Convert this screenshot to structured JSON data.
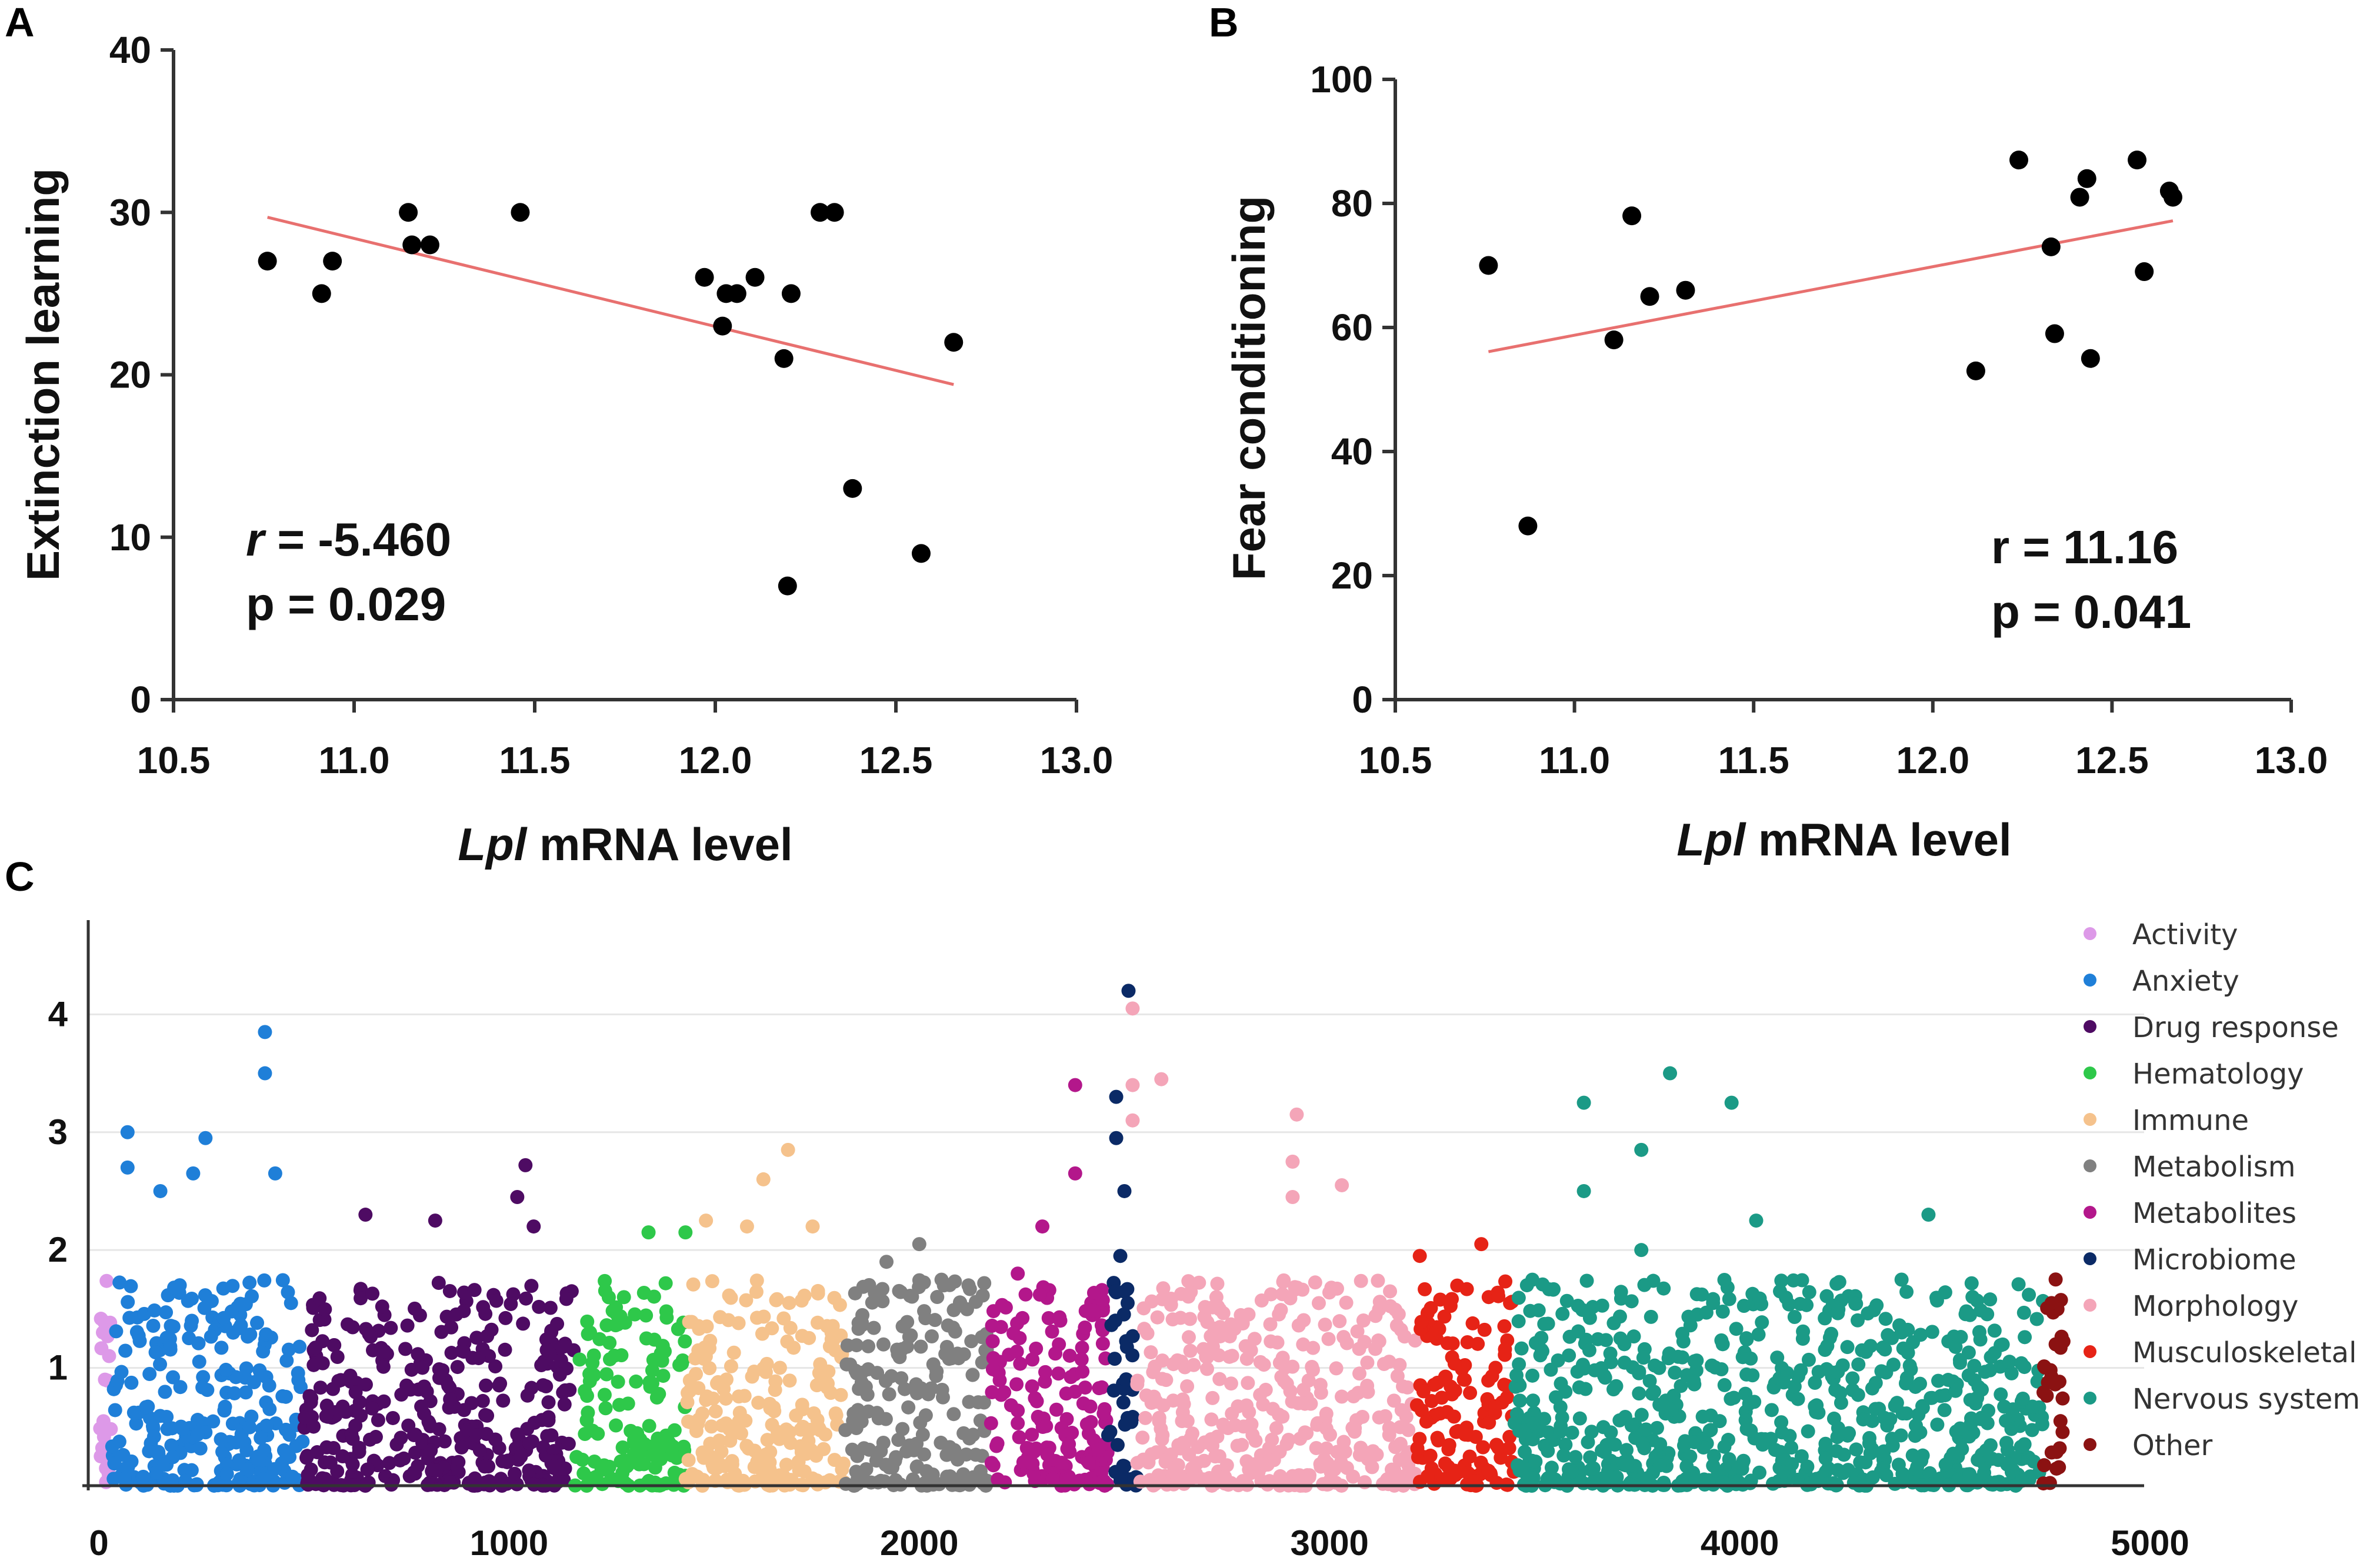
{
  "panels": {
    "a": "A",
    "b": "B",
    "c": "C"
  },
  "chart_data": [
    {
      "id": "A",
      "type": "scatter",
      "title": "",
      "xlabel_italic": "Lpl",
      "xlabel_rest": " mRNA level",
      "ylabel": "Extinction learning",
      "xlim": [
        10.5,
        13.0
      ],
      "ylim": [
        0,
        40
      ],
      "xticks": [
        "10.5",
        "11.0",
        "11.5",
        "12.0",
        "12.5",
        "13.0"
      ],
      "yticks": [
        "0",
        "10",
        "20",
        "30",
        "40"
      ],
      "points": [
        [
          10.76,
          27
        ],
        [
          10.91,
          25
        ],
        [
          10.94,
          27
        ],
        [
          11.15,
          30
        ],
        [
          11.16,
          28
        ],
        [
          11.21,
          28
        ],
        [
          11.46,
          30
        ],
        [
          11.97,
          26
        ],
        [
          12.02,
          23
        ],
        [
          12.03,
          25
        ],
        [
          12.06,
          25
        ],
        [
          12.11,
          26
        ],
        [
          12.19,
          21
        ],
        [
          12.21,
          25
        ],
        [
          12.2,
          7
        ],
        [
          12.29,
          30
        ],
        [
          12.33,
          30
        ],
        [
          12.38,
          13
        ],
        [
          12.57,
          9
        ],
        [
          12.66,
          22
        ]
      ],
      "fit": {
        "x": [
          10.76,
          12.66
        ],
        "y": [
          29.7,
          19.4
        ],
        "color": "#e8706f"
      },
      "stat_r_label": "r",
      "stat_r_value": " = -5.460",
      "stat_p": "p = 0.029"
    },
    {
      "id": "B",
      "type": "scatter",
      "title": "",
      "xlabel_italic": "Lpl",
      "xlabel_rest": " mRNA level",
      "ylabel": "Fear conditioning",
      "xlim": [
        10.5,
        13.0
      ],
      "ylim": [
        0,
        100
      ],
      "xticks": [
        "10.5",
        "11.0",
        "11.5",
        "12.0",
        "12.5",
        "13.0"
      ],
      "yticks": [
        "0",
        "20",
        "40",
        "60",
        "80",
        "100"
      ],
      "points": [
        [
          10.76,
          70
        ],
        [
          10.87,
          28
        ],
        [
          11.11,
          58
        ],
        [
          11.16,
          78
        ],
        [
          11.21,
          65
        ],
        [
          11.31,
          66
        ],
        [
          12.12,
          53
        ],
        [
          12.24,
          87
        ],
        [
          12.33,
          73
        ],
        [
          12.34,
          59
        ],
        [
          12.41,
          81
        ],
        [
          12.43,
          84
        ],
        [
          12.44,
          55
        ],
        [
          12.57,
          87
        ],
        [
          12.59,
          69
        ],
        [
          12.66,
          82
        ],
        [
          12.67,
          81
        ]
      ],
      "fit": {
        "x": [
          10.76,
          12.67
        ],
        "y": [
          56.1,
          77.2
        ],
        "color": "#e8706f"
      },
      "stat_r": "r = 11.16",
      "stat_p": "p = 0.041"
    },
    {
      "id": "C",
      "type": "scatter",
      "title": "",
      "xlabel": "",
      "ylabel": "",
      "xlim": [
        0,
        5000
      ],
      "ylim": [
        0,
        4.8
      ],
      "xticks": [
        "0",
        "1000",
        "2000",
        "3000",
        "4000",
        "5000"
      ],
      "yticks": [
        "1",
        "2",
        "3",
        "4"
      ],
      "grid": true,
      "legend_position": "right",
      "categories": [
        {
          "name": "Activity",
          "color": "#dd99e8",
          "range": [
            0,
            30
          ],
          "peaks": [
            [
              10,
              1.3
            ],
            [
              25,
              1.1
            ],
            [
              15,
              0.9
            ]
          ]
        },
        {
          "name": "Anxiety",
          "color": "#1f7fd8",
          "range": [
            30,
            500
          ],
          "peaks": [
            [
              405,
              3.85
            ],
            [
              405,
              3.5
            ],
            [
              70,
              3.0
            ],
            [
              260,
              2.95
            ],
            [
              70,
              2.7
            ],
            [
              230,
              2.65
            ],
            [
              430,
              2.65
            ],
            [
              150,
              2.5
            ]
          ]
        },
        {
          "name": "Drug response",
          "color": "#4e0b63",
          "range": [
            500,
            1160
          ],
          "peaks": [
            [
              1040,
              2.72
            ],
            [
              1020,
              2.45
            ],
            [
              650,
              2.3
            ],
            [
              820,
              2.25
            ],
            [
              1060,
              2.2
            ]
          ]
        },
        {
          "name": "Hematology",
          "color": "#2ec84a",
          "range": [
            1160,
            1430
          ],
          "peaks": [
            [
              1340,
              2.15
            ],
            [
              1430,
              2.15
            ],
            [
              1280,
              1.6
            ]
          ]
        },
        {
          "name": "Immune",
          "color": "#f5c28c",
          "range": [
            1430,
            1820
          ],
          "peaks": [
            [
              1680,
              2.85
            ],
            [
              1620,
              2.6
            ],
            [
              1480,
              2.25
            ],
            [
              1580,
              2.2
            ],
            [
              1740,
              2.2
            ]
          ]
        },
        {
          "name": "Metabolism",
          "color": "#808080",
          "range": [
            1820,
            2170
          ],
          "peaks": [
            [
              2000,
              2.05
            ],
            [
              1920,
              1.9
            ],
            [
              2060,
              1.7
            ],
            [
              2120,
              1.7
            ]
          ]
        },
        {
          "name": "Metabolites",
          "color": "#b3178b",
          "range": [
            2170,
            2460
          ],
          "peaks": [
            [
              2380,
              3.4
            ],
            [
              2380,
              2.65
            ],
            [
              2300,
              2.2
            ],
            [
              2240,
              1.8
            ]
          ]
        },
        {
          "name": "Microbiome",
          "color": "#0b2a66",
          "range": [
            2460,
            2530
          ],
          "peaks": [
            [
              2510,
              4.2
            ],
            [
              2480,
              3.3
            ],
            [
              2480,
              2.95
            ],
            [
              2500,
              2.5
            ],
            [
              2490,
              1.95
            ]
          ]
        },
        {
          "name": "Morphology",
          "color": "#f4a5b8",
          "range": [
            2530,
            3210
          ],
          "peaks": [
            [
              2520,
              4.05
            ],
            [
              2520,
              3.4
            ],
            [
              2590,
              3.45
            ],
            [
              2520,
              3.1
            ],
            [
              2920,
              3.15
            ],
            [
              2910,
              2.75
            ],
            [
              3030,
              2.55
            ],
            [
              2910,
              2.45
            ]
          ]
        },
        {
          "name": "Musculoskeletal",
          "color": "#e62316",
          "range": [
            3210,
            3450
          ],
          "peaks": [
            [
              3370,
              2.05
            ],
            [
              3220,
              1.95
            ],
            [
              3440,
              1.55
            ]
          ]
        },
        {
          "name": "Nervous system",
          "color": "#1b9a86",
          "range": [
            3450,
            4740
          ],
          "peaks": [
            [
              3830,
              3.5
            ],
            [
              3620,
              3.25
            ],
            [
              3980,
              3.25
            ],
            [
              3760,
              2.85
            ],
            [
              3620,
              2.5
            ],
            [
              4460,
              2.3
            ],
            [
              4040,
              2.25
            ],
            [
              3760,
              2.0
            ]
          ]
        },
        {
          "name": "Other",
          "color": "#8b1212",
          "range": [
            4740,
            4790
          ],
          "peaks": [
            [
              4770,
              1.75
            ],
            [
              4760,
              1.55
            ],
            [
              4770,
              1.2
            ]
          ]
        }
      ]
    }
  ]
}
